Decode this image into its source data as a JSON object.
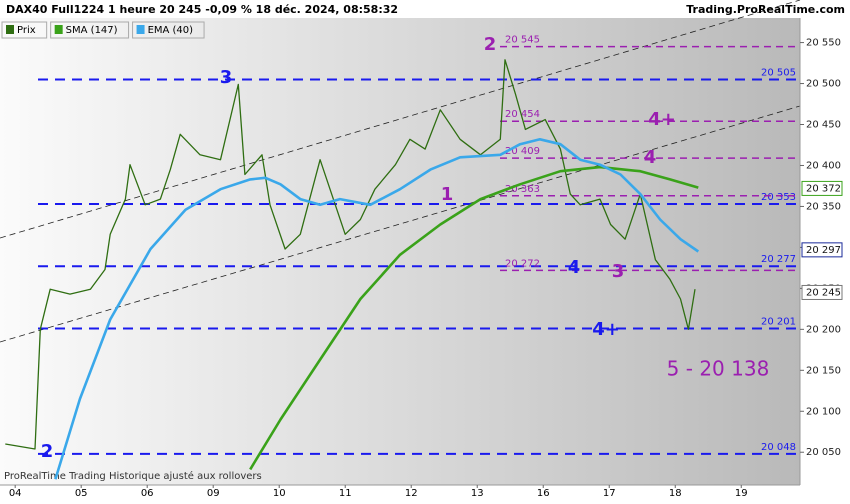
{
  "chart_data": {
    "type": "line",
    "title": "DAX40 Full1224 1 heure 20 245 -0,09 % 18 déc. 2024, 08:58:32",
    "source": "Trading.ProRealTime.com",
    "footer": "ProRealTime Trading Historique ajusté aux rollovers",
    "xlim": [
      -0.23,
      11.89
    ],
    "xticks": [
      {
        "value": 0,
        "label": "04"
      },
      {
        "value": 1,
        "label": "05"
      },
      {
        "value": 2,
        "label": "06"
      },
      {
        "value": 3,
        "label": "09"
      },
      {
        "value": 4,
        "label": "10"
      },
      {
        "value": 5,
        "label": "11"
      },
      {
        "value": 6,
        "label": "12"
      },
      {
        "value": 7,
        "label": "13"
      },
      {
        "value": 8,
        "label": "16"
      },
      {
        "value": 9,
        "label": "17"
      },
      {
        "value": 10,
        "label": "18"
      },
      {
        "value": 11,
        "label": "19"
      }
    ],
    "ylim": [
      20010,
      20580
    ],
    "yticks": [
      {
        "value": 20050,
        "label": "20 050"
      },
      {
        "value": 20100,
        "label": "20 100"
      },
      {
        "value": 20150,
        "label": "20 150"
      },
      {
        "value": 20200,
        "label": "20 200"
      },
      {
        "value": 20250,
        "label": "20 250"
      },
      {
        "value": 20300,
        "label": "20 300"
      },
      {
        "value": 20350,
        "label": "20 350"
      },
      {
        "value": 20400,
        "label": "20 400"
      },
      {
        "value": 20450,
        "label": "20 450"
      },
      {
        "value": 20500,
        "label": "20 500"
      },
      {
        "value": 20550,
        "label": "20 550"
      }
    ],
    "series": [
      {
        "name": "Prix",
        "color": "#2f6e12",
        "x": [
          -0.15,
          0.3,
          0.38,
          0.53,
          0.83,
          1.14,
          1.36,
          1.44,
          1.67,
          1.74,
          1.97,
          2.2,
          2.35,
          2.5,
          2.8,
          3.11,
          3.38,
          3.48,
          3.74,
          3.86,
          4.09,
          4.32,
          4.62,
          5.0,
          5.23,
          5.45,
          5.76,
          5.98,
          6.21,
          6.44,
          6.74,
          7.05,
          7.35,
          7.42,
          7.58,
          7.73,
          8.03,
          8.26,
          8.41,
          8.56,
          8.86,
          9.02,
          9.24,
          9.47,
          9.7,
          9.92,
          10.08,
          10.2,
          10.3
        ],
        "values": [
          20060,
          20054,
          20200,
          20249,
          20243,
          20249,
          20273,
          20316,
          20359,
          20401,
          20352,
          20359,
          20395,
          20438,
          20413,
          20407,
          20499,
          20389,
          20413,
          20352,
          20298,
          20316,
          20407,
          20316,
          20334,
          20371,
          20401,
          20432,
          20420,
          20468,
          20432,
          20413,
          20432,
          20529,
          20487,
          20444,
          20456,
          20420,
          20365,
          20352,
          20359,
          20328,
          20310,
          20365,
          20285,
          20261,
          20237,
          20200,
          20249
        ]
      },
      {
        "name": "SMA (147)",
        "color": "#3aa21a",
        "x": [
          3.56,
          4.02,
          4.62,
          5.23,
          5.83,
          6.44,
          7.05,
          7.65,
          8.26,
          8.86,
          9.47,
          9.92,
          10.35
        ],
        "values": [
          20029,
          20090,
          20163,
          20237,
          20291,
          20328,
          20359,
          20377,
          20393,
          20398,
          20393,
          20383,
          20373
        ]
      },
      {
        "name": "EMA (40)",
        "color": "#3aa8ea",
        "x": [
          0.61,
          0.98,
          1.44,
          2.05,
          2.58,
          3.11,
          3.56,
          3.79,
          4.02,
          4.32,
          4.62,
          4.92,
          5.38,
          5.83,
          6.29,
          6.74,
          7.35,
          7.65,
          7.95,
          8.26,
          8.56,
          8.86,
          9.17,
          9.47,
          9.77,
          10.08,
          10.35
        ],
        "values": [
          20017,
          20115,
          20212,
          20298,
          20346,
          20371,
          20383,
          20385,
          20377,
          20359,
          20352,
          20359,
          20352,
          20371,
          20395,
          20410,
          20413,
          20426,
          20432,
          20426,
          20407,
          20401,
          20389,
          20365,
          20334,
          20310,
          20295
        ]
      }
    ],
    "levels": [
      {
        "value": 20505,
        "label": "20 505",
        "color": "#1a1aee"
      },
      {
        "value": 20353,
        "label": "20 353",
        "color": "#1a1aee"
      },
      {
        "value": 20277,
        "label": "20 277",
        "color": "#1a1aee"
      },
      {
        "value": 20201,
        "label": "20 201",
        "color": "#1a1aee"
      },
      {
        "value": 20048,
        "label": "20 048",
        "color": "#1a1aee"
      },
      {
        "value": 20545,
        "label": "20 545",
        "color": "#9b1fb0"
      },
      {
        "value": 20454,
        "label": "20 454",
        "color": "#9b1fb0"
      },
      {
        "value": 20409,
        "label": "20 409",
        "color": "#9b1fb0"
      },
      {
        "value": 20363,
        "label": "20 363",
        "color": "#9b1fb0"
      },
      {
        "value": 20272,
        "label": "20 272",
        "color": "#9b1fb0"
      }
    ],
    "markers": [
      {
        "value": 20372,
        "label": "20 372",
        "color": "#3aa21a"
      },
      {
        "value": 20297,
        "label": "20 297",
        "color": "#1a2a9a"
      },
      {
        "value": 20245,
        "label": "20 245",
        "color": "#777777"
      }
    ],
    "annotations": [
      {
        "text": "3",
        "color": "#1a1aee"
      },
      {
        "text": "2",
        "color": "#1a1aee"
      },
      {
        "text": "1",
        "color": "#9b1fb0"
      },
      {
        "text": "2",
        "color": "#9b1fb0"
      },
      {
        "text": "4+",
        "color": "#9b1fb0"
      },
      {
        "text": "4",
        "color": "#9b1fb0"
      },
      {
        "text": "3",
        "color": "#9b1fb0"
      },
      {
        "text": "4",
        "color": "#1a1aee"
      },
      {
        "text": "4+",
        "color": "#1a1aee"
      },
      {
        "text": "5 - 20 138",
        "color": "#9b1fb0"
      }
    ]
  }
}
